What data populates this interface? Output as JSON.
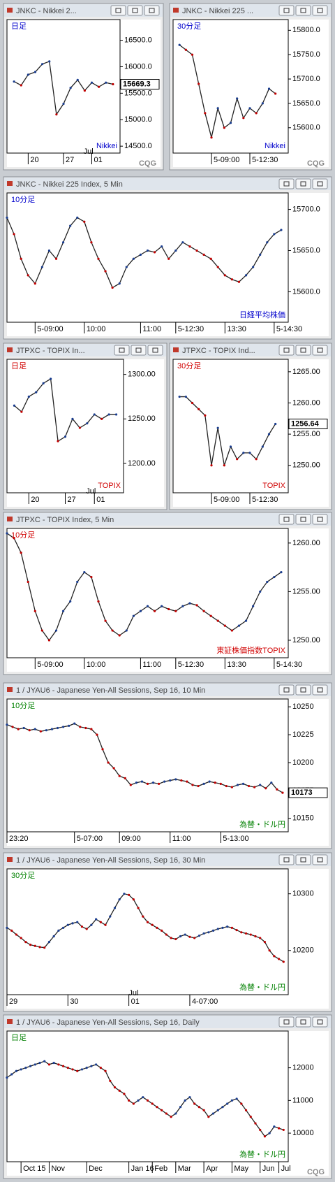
{
  "logo": "CQG",
  "chart_data": [
    {
      "type": "line",
      "title": "JNKC - Nikkei 2...",
      "label": "日足",
      "name": "Nikkei",
      "color": "#222",
      "ylim": [
        14370,
        16890
      ],
      "yticks": [
        {
          "value": 14500,
          "label": "14500.0"
        },
        {
          "value": 15000,
          "label": "15000.0"
        },
        {
          "value": 15500,
          "label": "15500.0"
        },
        {
          "value": 16000,
          "label": "16000.0"
        },
        {
          "value": 16500,
          "label": "16500.0"
        }
      ],
      "xlim": [
        -1,
        15
      ],
      "xticks": [
        {
          "value": 2,
          "label": "20"
        },
        {
          "value": 7,
          "label": "27"
        },
        {
          "value": 11,
          "label": "01"
        }
      ],
      "annotation": "Jul",
      "last": 15669.3,
      "values": [
        15720,
        15650,
        15850,
        15900,
        16050,
        16100,
        15100,
        15300,
        15600,
        15750,
        15550,
        15700,
        15620,
        15700,
        15669.3
      ]
    },
    {
      "type": "line",
      "title": "JNKC - Nikkei 225 ...",
      "label": "30分足",
      "name": "Nikkei",
      "color": "#222",
      "ylim": [
        15548,
        15822
      ],
      "yticks": [
        {
          "value": 15600,
          "label": "15600.0"
        },
        {
          "value": 15650,
          "label": "15650.0"
        },
        {
          "value": 15700,
          "label": "15700.0"
        },
        {
          "value": 15750,
          "label": "15750.0"
        },
        {
          "value": 15800,
          "label": "15800.0"
        }
      ],
      "xlim": [
        -1,
        17
      ],
      "xticks": [
        {
          "value": 5,
          "label": "5-09:00"
        },
        {
          "value": 11,
          "label": "5-12:30"
        }
      ],
      "values": [
        15770,
        15760,
        15750,
        15690,
        15630,
        15580,
        15640,
        15600,
        15610,
        15660,
        15620,
        15640,
        15630,
        15650,
        15680,
        15670
      ]
    },
    {
      "type": "line",
      "title": "JNKC - Nikkei 225 Index, 5 Min",
      "label": "10分足",
      "name": "日経平均株価",
      "color": "#222",
      "ylim": [
        15563,
        15720
      ],
      "yticks": [
        {
          "value": 15600,
          "label": "15600.0"
        },
        {
          "value": 15650,
          "label": "15650.0"
        },
        {
          "value": 15700,
          "label": "15700.0"
        }
      ],
      "xlim": [
        0,
        40
      ],
      "xticks": [
        {
          "value": 4,
          "label": "5-09:00"
        },
        {
          "value": 11,
          "label": "10:00"
        },
        {
          "value": 19,
          "label": "11:00"
        },
        {
          "value": 24,
          "label": "5-12:30"
        },
        {
          "value": 31,
          "label": "13:30"
        },
        {
          "value": 38,
          "label": "5-14:30"
        }
      ],
      "values": [
        15690,
        15670,
        15640,
        15620,
        15610,
        15630,
        15650,
        15640,
        15660,
        15680,
        15690,
        15685,
        15660,
        15640,
        15625,
        15605,
        15610,
        15630,
        15640,
        15645,
        15650,
        15648,
        15655,
        15640,
        15650,
        15660,
        15655,
        15650,
        15645,
        15640,
        15630,
        15620,
        15615,
        15612,
        15620,
        15630,
        15645,
        15660,
        15670,
        15675
      ]
    },
    {
      "type": "line",
      "title": "JTPXC - TOPIX In...",
      "label": "日足",
      "name": "TOPIX",
      "color": "#222",
      "ylim": [
        1167,
        1317
      ],
      "yticks": [
        {
          "value": 1200,
          "label": "1200.00"
        },
        {
          "value": 1250,
          "label": "1250.00"
        },
        {
          "value": 1300,
          "label": "1300.00"
        }
      ],
      "xlim": [
        -1,
        15
      ],
      "xticks": [
        {
          "value": 2,
          "label": "20"
        },
        {
          "value": 7,
          "label": "27"
        },
        {
          "value": 11,
          "label": "01"
        }
      ],
      "annotation": "Jul",
      "values": [
        1265,
        1258,
        1275,
        1280,
        1290,
        1295,
        1225,
        1230,
        1250,
        1240,
        1245,
        1255,
        1250,
        1255,
        1255
      ]
    },
    {
      "type": "line",
      "title": "JTPXC - TOPIX Ind...",
      "label": "30分足",
      "name": "TOPIX",
      "color": "#222",
      "ylim": [
        1245.6,
        1267
      ],
      "yticks": [
        {
          "value": 1250,
          "label": "1250.00"
        },
        {
          "value": 1255,
          "label": "1255.00"
        },
        {
          "value": 1260,
          "label": "1260.00"
        },
        {
          "value": 1265,
          "label": "1265.00"
        }
      ],
      "xlim": [
        -1,
        17
      ],
      "xticks": [
        {
          "value": 5,
          "label": "5-09:00"
        },
        {
          "value": 11,
          "label": "5-12:30"
        }
      ],
      "last": 1256.64,
      "values": [
        1261,
        1261,
        1260,
        1259,
        1258,
        1250,
        1256,
        1250,
        1253,
        1251,
        1252,
        1252,
        1251,
        1253,
        1255,
        1256.64
      ]
    },
    {
      "type": "line",
      "title": "JTPXC - TOPIX Index, 5 Min",
      "label": "10分足",
      "name": "東証株価指数TOPIX",
      "color": "#222",
      "ylim": [
        1248.2,
        1261.5
      ],
      "yticks": [
        {
          "value": 1250,
          "label": "1250.00"
        },
        {
          "value": 1255,
          "label": "1255.00"
        },
        {
          "value": 1260,
          "label": "1260.00"
        }
      ],
      "xlim": [
        0,
        40
      ],
      "xticks": [
        {
          "value": 4,
          "label": "5-09:00"
        },
        {
          "value": 11,
          "label": "10:00"
        },
        {
          "value": 19,
          "label": "11:00"
        },
        {
          "value": 24,
          "label": "5-12:30"
        },
        {
          "value": 31,
          "label": "13:30"
        },
        {
          "value": 38,
          "label": "5-14:30"
        }
      ],
      "values": [
        1261,
        1260.5,
        1259,
        1256,
        1253,
        1251,
        1250,
        1251,
        1253,
        1254,
        1256,
        1257,
        1256.5,
        1254,
        1252,
        1251,
        1250.5,
        1251,
        1252.5,
        1253,
        1253.5,
        1253,
        1253.5,
        1253.2,
        1253,
        1253.5,
        1253.8,
        1253.6,
        1253,
        1252.5,
        1252,
        1251.5,
        1251,
        1251.5,
        1252,
        1253.5,
        1255,
        1256,
        1256.5,
        1257
      ]
    },
    {
      "type": "line",
      "title": "1 / JYAU6 - Japanese Yen-All Sessions, Sep 16, 10 Min",
      "label": "10分足",
      "name": "為替・ドル円",
      "color": "#222",
      "ylim": [
        10138,
        10257
      ],
      "yticks": [
        10150,
        10175,
        10200,
        10225,
        10250
      ],
      "xlim": [
        0,
        50
      ],
      "xticks": [
        {
          "value": 0,
          "label": "23:20"
        },
        {
          "value": 12,
          "label": "5-07:00"
        },
        {
          "value": 20,
          "label": "09:00"
        },
        {
          "value": 29,
          "label": "11:00"
        },
        {
          "value": 38,
          "label": "5-13:00"
        }
      ],
      "last": 10173,
      "values": [
        10234,
        10232,
        10230,
        10231,
        10229,
        10230,
        10228,
        10229,
        10230,
        10231,
        10232,
        10233,
        10235,
        10232,
        10231,
        10230,
        10225,
        10212,
        10200,
        10195,
        10188,
        10186,
        10180,
        10182,
        10183,
        10181,
        10182,
        10181,
        10183,
        10184,
        10185,
        10184,
        10183,
        10180,
        10179,
        10181,
        10183,
        10182,
        10181,
        10179,
        10178,
        10180,
        10181,
        10179,
        10178,
        10180,
        10177,
        10182,
        10176,
        10173
      ]
    },
    {
      "type": "line",
      "title": "1 / JYAU6 - Japanese Yen-All Sessions, Sep 16, 30 Min",
      "label": "30分足",
      "name": "為替・ドル円",
      "color": "#222",
      "ylim": [
        10122,
        10344
      ],
      "yticks": [
        10200,
        10300
      ],
      "xlim": [
        0,
        60
      ],
      "xticks": [
        {
          "value": 0,
          "label": "29"
        },
        {
          "value": 13,
          "label": "30"
        },
        {
          "value": 26,
          "label": "01"
        },
        {
          "value": 39,
          "label": "4-07:00"
        }
      ],
      "annotation": "Jul",
      "values": [
        10240,
        10235,
        10228,
        10222,
        10215,
        10210,
        10208,
        10206,
        10205,
        10215,
        10225,
        10235,
        10240,
        10245,
        10248,
        10250,
        10242,
        10238,
        10245,
        10255,
        10250,
        10245,
        10260,
        10275,
        10290,
        10300,
        10298,
        10290,
        10275,
        10260,
        10250,
        10245,
        10240,
        10235,
        10228,
        10222,
        10220,
        10225,
        10228,
        10224,
        10222,
        10226,
        10230,
        10232,
        10235,
        10238,
        10240,
        10242,
        10240,
        10236,
        10232,
        10230,
        10228,
        10225,
        10222,
        10215,
        10200,
        10190,
        10185,
        10180
      ]
    },
    {
      "type": "line",
      "title": "1 / JYAU6 - Japanese Yen-All Sessions, Sep 16, Daily",
      "label": "日足",
      "name": "為替・ドル円",
      "color": "#222",
      "ylim": [
        9125,
        13125
      ],
      "yticks": [
        10000,
        11000,
        12000
      ],
      "xlim": [
        0,
        60
      ],
      "xticks": [
        {
          "value": 3,
          "label": "Oct 15"
        },
        {
          "value": 9,
          "label": "Nov"
        },
        {
          "value": 17,
          "label": "Dec"
        },
        {
          "value": 26,
          "label": "Jan 16"
        },
        {
          "value": 31,
          "label": "Feb"
        },
        {
          "value": 36,
          "label": "Mar"
        },
        {
          "value": 42,
          "label": "Apr"
        },
        {
          "value": 48,
          "label": "May"
        },
        {
          "value": 54,
          "label": "Jun"
        },
        {
          "value": 58,
          "label": "Jul"
        }
      ],
      "values": [
        11700,
        11800,
        11900,
        11950,
        12000,
        12050,
        12100,
        12150,
        12200,
        12100,
        12150,
        12100,
        12050,
        12000,
        11950,
        11900,
        11950,
        12000,
        12050,
        12100,
        12000,
        11900,
        11600,
        11400,
        11300,
        11200,
        11000,
        10900,
        11000,
        11100,
        11000,
        10900,
        10800,
        10700,
        10600,
        10500,
        10600,
        10800,
        11000,
        11100,
        10900,
        10800,
        10700,
        10500,
        10600,
        10700,
        10800,
        10900,
        11000,
        11050,
        10900,
        10700,
        10500,
        10300,
        10100,
        9900,
        10000,
        10200,
        10150,
        10100
      ]
    }
  ]
}
